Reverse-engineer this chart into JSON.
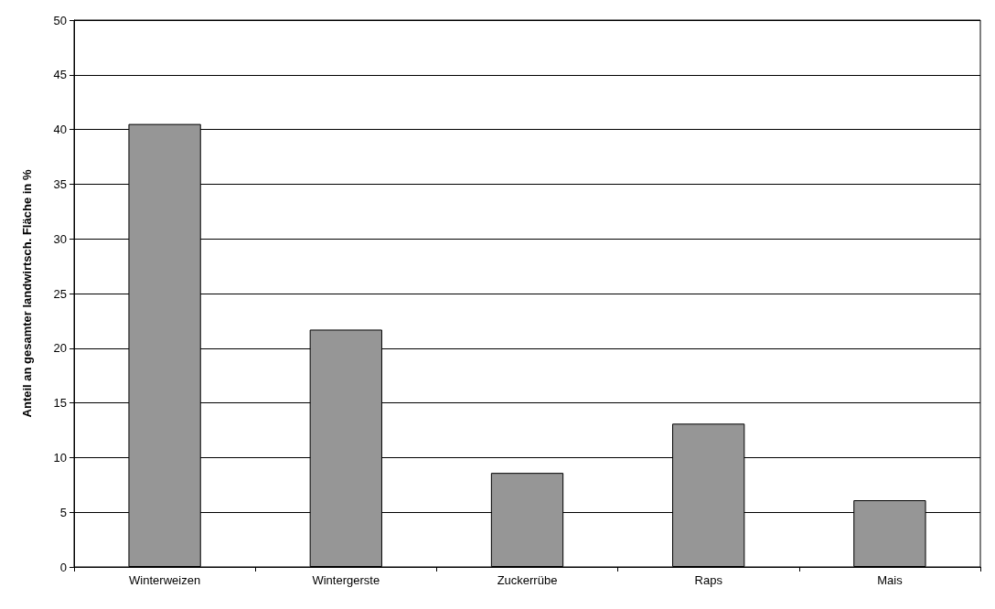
{
  "chart_data": {
    "type": "bar",
    "ylabel": "Anteil an gesamter landwirtsch. Fläche in %",
    "categories": [
      "Winterweizen",
      "Wintergerste",
      "Zuckerrübe",
      "Raps",
      "Mais"
    ],
    "values": [
      40.5,
      21.7,
      8.6,
      13.1,
      6.1
    ],
    "color": "#969696",
    "ylim": [
      0,
      50
    ],
    "yticks": [
      0,
      5,
      10,
      15,
      20,
      25,
      30,
      35,
      40,
      45,
      50
    ],
    "grid": "y"
  }
}
